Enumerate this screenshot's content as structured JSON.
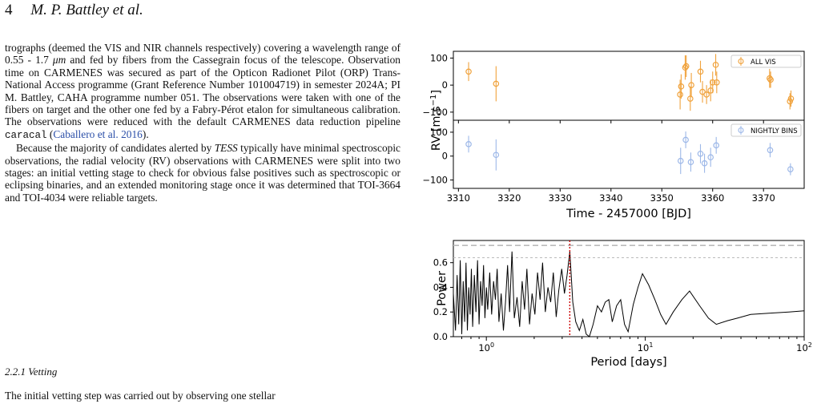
{
  "header": {
    "page_number": "4",
    "authors": "M. P. Battley et al."
  },
  "body": {
    "p1_a": "trographs (deemed the VIS and NIR channels respectively) covering a wavelength range of 0.55 - 1.7 ",
    "p1_unit": "μm",
    "p1_b": " and fed by fibers from the Cassegrain focus of the telescope. Observation time on CARMENES was secured as part of the Opticon Radionet Pilot (ORP) Trans-National Access programme (Grant Reference Number 101004719) in semester 2024A; PI M. Battley, CAHA programme number 051. The observations were taken with one of the fibers on target and the other one fed by a Fabry-Pérot etalon for simultaneous calibration. The observations were reduced with the default CARMENES data reduction pipeline ",
    "p1_code": "caracal",
    "p1_cite": "Caballero et al. 2016",
    "p1_c": " (",
    "p1_d": ").",
    "p2_a": "Because the majority of candidates alerted by ",
    "p2_tess": "TESS",
    "p2_b": " typically have minimal spectroscopic observations, the radial velocity (RV) observations with CARMENES were split into two stages: an initial vetting stage to check for obvious false positives such as spectroscopic or eclipsing binaries, and an extended monitoring stage once it was determined that TOI-3664 and TOI-4034 were reliable targets.",
    "subsection": "2.2.1  Vetting",
    "p3": "The initial vetting step was carried out by observing one stellar"
  },
  "chart_data": [
    {
      "type": "scatter",
      "panel": "rv",
      "xlabel": "Time - 2457000 [BJD]",
      "ylabel": "RV [m.s",
      "ylabel_sup": "−1",
      "ylabel_end": "]",
      "xlim": [
        3309,
        3378
      ],
      "xticks": [
        3310,
        3320,
        3330,
        3340,
        3350,
        3360,
        3370
      ],
      "colors": {
        "all_vis": "#f0a23c",
        "nightly": "#9db8e8"
      },
      "series": [
        {
          "name": "ALL VIS",
          "ylim": [
            -130,
            125
          ],
          "yticks": [
            -100,
            0,
            100
          ],
          "points": [
            {
              "x": 3312.0,
              "y": 50,
              "err": 35
            },
            {
              "x": 3317.4,
              "y": 5,
              "err": 65
            },
            {
              "x": 3353.6,
              "y": -35,
              "err": 55
            },
            {
              "x": 3353.8,
              "y": -5,
              "err": 45
            },
            {
              "x": 3354.6,
              "y": 65,
              "err": 45
            },
            {
              "x": 3354.8,
              "y": 70,
              "err": 40
            },
            {
              "x": 3355.6,
              "y": -50,
              "err": 45
            },
            {
              "x": 3355.8,
              "y": 0,
              "err": 45
            },
            {
              "x": 3357.6,
              "y": 50,
              "err": 40
            },
            {
              "x": 3358.0,
              "y": -25,
              "err": 40
            },
            {
              "x": 3358.8,
              "y": -35,
              "err": 35
            },
            {
              "x": 3359.6,
              "y": -20,
              "err": 40
            },
            {
              "x": 3360.0,
              "y": 10,
              "err": 40
            },
            {
              "x": 3360.6,
              "y": 75,
              "err": 40
            },
            {
              "x": 3360.8,
              "y": 10,
              "err": 40
            },
            {
              "x": 3371.2,
              "y": 25,
              "err": 35
            },
            {
              "x": 3371.4,
              "y": 20,
              "err": 30
            },
            {
              "x": 3375.2,
              "y": -60,
              "err": 30
            },
            {
              "x": 3375.4,
              "y": -50,
              "err": 30
            }
          ]
        },
        {
          "name": "NIGHTLY BINS",
          "ylim": [
            -135,
            150
          ],
          "yticks": [
            -100,
            0,
            100
          ],
          "points": [
            {
              "x": 3312.0,
              "y": 50,
              "err": 35
            },
            {
              "x": 3317.4,
              "y": 5,
              "err": 65
            },
            {
              "x": 3353.7,
              "y": -20,
              "err": 55
            },
            {
              "x": 3354.7,
              "y": 68,
              "err": 35
            },
            {
              "x": 3355.7,
              "y": -25,
              "err": 40
            },
            {
              "x": 3357.6,
              "y": 10,
              "err": 40
            },
            {
              "x": 3358.4,
              "y": -30,
              "err": 40
            },
            {
              "x": 3359.6,
              "y": -5,
              "err": 40
            },
            {
              "x": 3360.7,
              "y": 45,
              "err": 35
            },
            {
              "x": 3371.3,
              "y": 25,
              "err": 30
            },
            {
              "x": 3375.3,
              "y": -55,
              "err": 25
            }
          ]
        }
      ]
    },
    {
      "type": "line",
      "panel": "periodogram",
      "xlabel": "Period [days]",
      "ylabel": "Power",
      "xscale": "log",
      "xlim": [
        0.62,
        100
      ],
      "xtick_base": "10",
      "xtick_exponents": [
        "0",
        "1",
        "2"
      ],
      "ylim": [
        0,
        0.78
      ],
      "yticks": [
        "0.0",
        "0.2",
        "0.4",
        "0.6"
      ],
      "fap_levels": [
        0.74,
        0.64
      ],
      "peak_period": 3.35,
      "colors": {
        "line": "#000000",
        "peak": "#cc0000",
        "fap": "#bbbbbb"
      },
      "points": [
        [
          0.62,
          0.35
        ],
        [
          0.64,
          0.05
        ],
        [
          0.655,
          0.5
        ],
        [
          0.67,
          0.1
        ],
        [
          0.685,
          0.62
        ],
        [
          0.7,
          0.02
        ],
        [
          0.715,
          0.45
        ],
        [
          0.73,
          0.12
        ],
        [
          0.745,
          0.6
        ],
        [
          0.76,
          0.05
        ],
        [
          0.775,
          0.4
        ],
        [
          0.79,
          0.18
        ],
        [
          0.805,
          0.55
        ],
        [
          0.82,
          0.08
        ],
        [
          0.84,
          0.5
        ],
        [
          0.86,
          0.2
        ],
        [
          0.88,
          0.62
        ],
        [
          0.9,
          0.1
        ],
        [
          0.92,
          0.45
        ],
        [
          0.94,
          0.25
        ],
        [
          0.96,
          0.58
        ],
        [
          0.98,
          0.15
        ],
        [
          1.0,
          0.4
        ],
        [
          1.02,
          0.22
        ],
        [
          1.05,
          0.52
        ],
        [
          1.08,
          0.18
        ],
        [
          1.11,
          0.45
        ],
        [
          1.14,
          0.3
        ],
        [
          1.17,
          0.55
        ],
        [
          1.2,
          0.12
        ],
        [
          1.24,
          0.35
        ],
        [
          1.28,
          0.05
        ],
        [
          1.32,
          0.28
        ],
        [
          1.36,
          0.58
        ],
        [
          1.4,
          0.2
        ],
        [
          1.45,
          0.69
        ],
        [
          1.5,
          0.15
        ],
        [
          1.56,
          0.32
        ],
        [
          1.62,
          0.08
        ],
        [
          1.68,
          0.45
        ],
        [
          1.74,
          0.22
        ],
        [
          1.8,
          0.55
        ],
        [
          1.87,
          0.1
        ],
        [
          1.94,
          0.35
        ],
        [
          2.02,
          0.18
        ],
        [
          2.1,
          0.52
        ],
        [
          2.18,
          0.3
        ],
        [
          2.26,
          0.6
        ],
        [
          2.35,
          0.2
        ],
        [
          2.44,
          0.4
        ],
        [
          2.54,
          0.28
        ],
        [
          2.64,
          0.52
        ],
        [
          2.75,
          0.16
        ],
        [
          2.86,
          0.38
        ],
        [
          2.98,
          0.55
        ],
        [
          3.1,
          0.35
        ],
        [
          3.22,
          0.5
        ],
        [
          3.35,
          0.69
        ],
        [
          3.5,
          0.28
        ],
        [
          3.65,
          0.12
        ],
        [
          3.85,
          0.05
        ],
        [
          4.05,
          0.14
        ],
        [
          4.25,
          0.02
        ],
        [
          4.45,
          0.0
        ],
        [
          4.7,
          0.1
        ],
        [
          5.0,
          0.25
        ],
        [
          5.3,
          0.2
        ],
        [
          5.6,
          0.28
        ],
        [
          5.9,
          0.3
        ],
        [
          6.2,
          0.12
        ],
        [
          6.6,
          0.25
        ],
        [
          7.0,
          0.3
        ],
        [
          7.4,
          0.1
        ],
        [
          7.8,
          0.04
        ],
        [
          8.4,
          0.26
        ],
        [
          9.0,
          0.4
        ],
        [
          9.6,
          0.51
        ],
        [
          10.5,
          0.42
        ],
        [
          11.5,
          0.3
        ],
        [
          12.5,
          0.18
        ],
        [
          13.5,
          0.1
        ],
        [
          15.0,
          0.2
        ],
        [
          17.0,
          0.3
        ],
        [
          19.0,
          0.37
        ],
        [
          22.0,
          0.25
        ],
        [
          25.0,
          0.15
        ],
        [
          28.0,
          0.1
        ],
        [
          33.0,
          0.13
        ],
        [
          38.0,
          0.15
        ],
        [
          46.0,
          0.18
        ],
        [
          60.0,
          0.19
        ],
        [
          80.0,
          0.2
        ],
        [
          100.0,
          0.21
        ]
      ]
    }
  ]
}
